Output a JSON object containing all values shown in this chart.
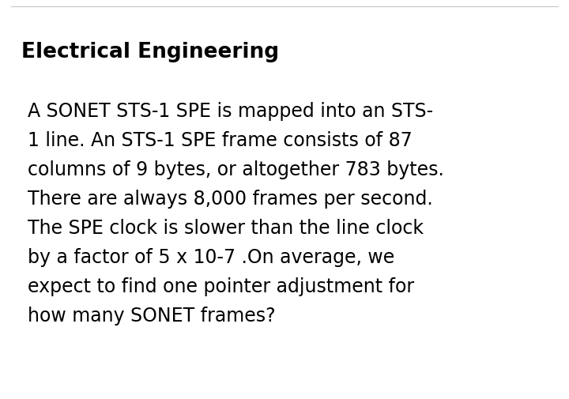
{
  "background_color": "#ffffff",
  "title": "Electrical Engineering",
  "title_fontsize": 19,
  "title_fontweight": "bold",
  "title_color": "#000000",
  "body_lines": [
    "A SONET STS-1 SPE is mapped into an STS-",
    "1 line. An STS-1 SPE frame consists of 87",
    "columns of 9 bytes, or altogether 783 bytes.",
    "There are always 8,000 frames per second.",
    "The SPE clock is slower than the line clock",
    "by a factor of 5 x 10-7 .On average, we",
    "expect to find one pointer adjustment for",
    "how many SONET frames?"
  ],
  "body_fontsize": 17,
  "body_color": "#000000",
  "top_border_color": "#c8c8c8",
  "fig_width": 7.2,
  "fig_height": 5.06,
  "dpi": 100
}
